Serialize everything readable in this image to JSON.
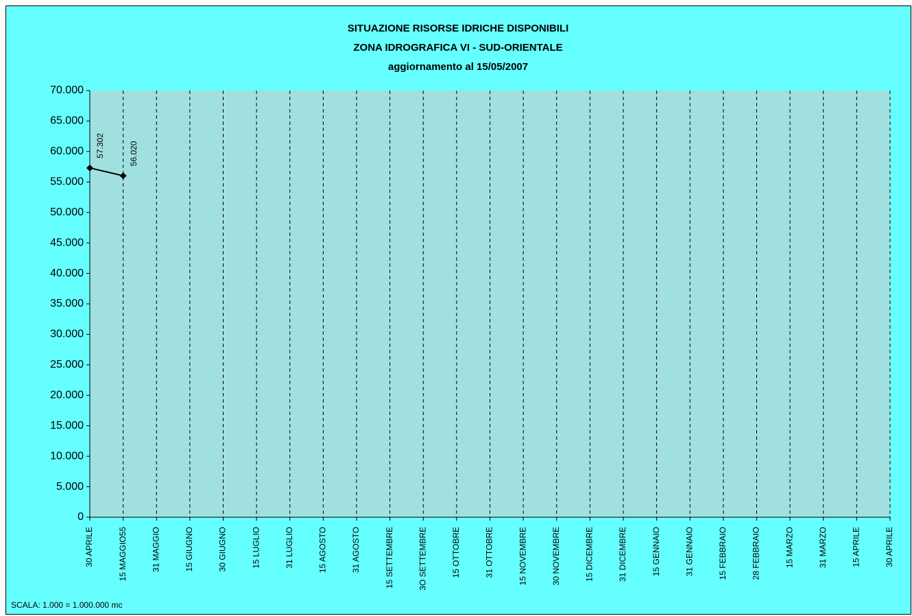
{
  "chart_data": {
    "type": "line",
    "title": [
      "SITUAZIONE RISORSE IDRICHE DISPONIBILI",
      "ZONA IDROGRAFICA  VI - SUD-ORIENTALE",
      "aggiornamento al  15/05/2007"
    ],
    "note": "SCALA: 1.000 = 1.000.000 mc",
    "categories": [
      "30 APRILE",
      "15  MAGGIO55",
      "31 MAGGIO",
      "15 GIUGNO",
      "30 GIUGNO",
      "15 LUGLIO",
      "31 LUGLIO",
      "15 AGOSTO",
      "31 AGOSTO",
      "15 SETTEMBRE",
      "3O SETTEMBRE",
      "15 OTTOBRE",
      "31 OTTOBRE",
      "15 NOVEMBRE",
      "30 NOVEMBRE",
      "15 DICEMBRE",
      "31  DICEMBRE",
      "15 GENNAIO",
      "31 GENNAIO",
      "15 FEBBRAIO",
      "28 FEBBRAIO",
      "15 MARZO",
      "31 MARZO",
      "15 APRILE",
      "30 APRILE"
    ],
    "values": [
      57302,
      56020,
      null,
      null,
      null,
      null,
      null,
      null,
      null,
      null,
      null,
      null,
      null,
      null,
      null,
      null,
      null,
      null,
      null,
      null,
      null,
      null,
      null,
      null,
      null
    ],
    "value_labels": [
      "57.302",
      "56.020",
      null,
      null,
      null,
      null,
      null,
      null,
      null,
      null,
      null,
      null,
      null,
      null,
      null,
      null,
      null,
      null,
      null,
      null,
      null,
      null,
      null,
      null,
      null
    ],
    "color": "#000000",
    "ylim": [
      0,
      70000
    ],
    "yticks": [
      0,
      {
        "value": 5000,
        "label": "5.000"
      },
      {
        "value": 10000,
        "label": "10.000"
      },
      {
        "value": 15000,
        "label": "15.000"
      },
      {
        "value": 20000,
        "label": "20.000"
      },
      {
        "value": 25000,
        "label": "25.000"
      },
      {
        "value": 30000,
        "label": "30.000"
      },
      {
        "value": 35000,
        "label": "35.000"
      },
      {
        "value": 40000,
        "label": "40.000"
      },
      {
        "value": 45000,
        "label": "45.000"
      },
      {
        "value": 50000,
        "label": "50.000"
      },
      {
        "value": 55000,
        "label": "55.000"
      },
      {
        "value": 60000,
        "label": "60.000"
      },
      {
        "value": 65000,
        "label": "65.000"
      },
      {
        "value": 70000,
        "label": "70.000"
      }
    ],
    "grid": true
  }
}
